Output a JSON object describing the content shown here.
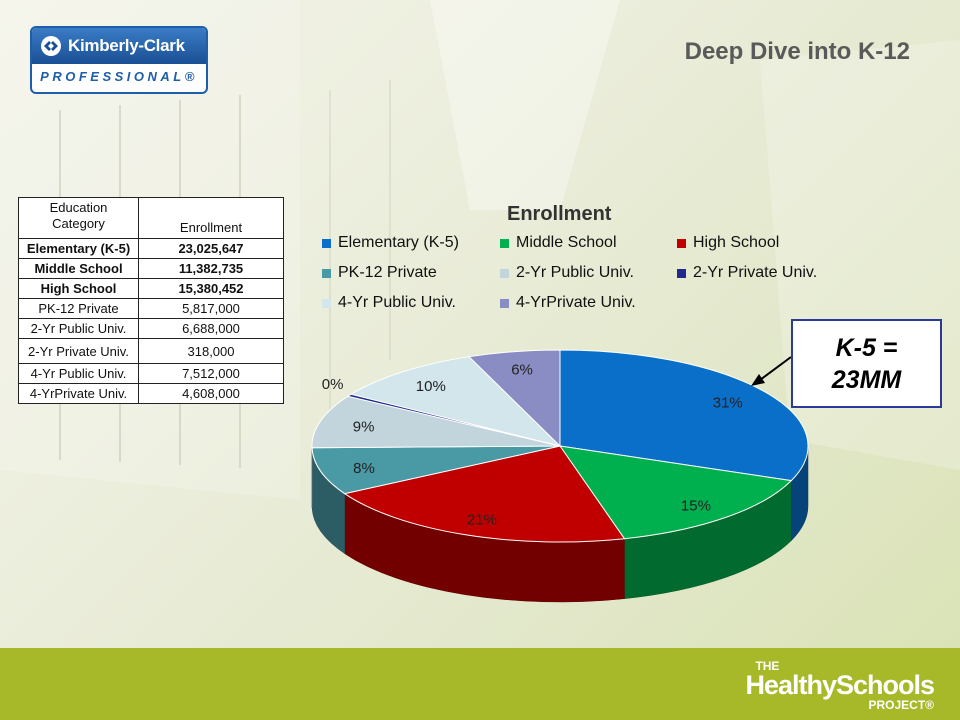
{
  "slide": {
    "title": "Deep Dive into K-12"
  },
  "logo": {
    "name": "Kimberly-Clark",
    "sub": "PROFESSIONAL®"
  },
  "table": {
    "headers": [
      "Education\nCategory",
      "Enrollment"
    ],
    "rows": [
      [
        "Elementary (K-5)",
        "23,025,647"
      ],
      [
        "Middle School",
        "11,382,735"
      ],
      [
        "High School",
        "15,380,452"
      ],
      [
        "PK-12 Private",
        "5,817,000"
      ],
      [
        "2-Yr Public Univ.",
        "6,688,000"
      ],
      [
        "2-Yr Private Univ.",
        "318,000"
      ],
      [
        "4-Yr Public Univ.",
        "7,512,000"
      ],
      [
        "4-YrPrivate Univ.",
        "4,608,000"
      ]
    ]
  },
  "chart_data": {
    "type": "pie",
    "title": "Enrollment",
    "legend_position": "top",
    "categories": [
      "Elementary (K-5)",
      "Middle School",
      "High School",
      "PK-12 Private",
      "2-Yr Public Univ.",
      "2-Yr Private Univ.",
      "4-Yr Public Univ.",
      "4-YrPrivate Univ."
    ],
    "values": [
      31,
      15,
      21,
      8,
      9,
      0.4,
      10,
      6
    ],
    "labels": [
      "31%",
      "15%",
      "21%",
      "8%",
      "9%",
      "0%",
      "10%",
      "6%"
    ],
    "colors": [
      "#0a6fc9",
      "#00b04f",
      "#c00000",
      "#4a9aa6",
      "#c2d4dc",
      "#1f2a8c",
      "#d2e6ec",
      "#8a8cc4"
    ],
    "style": "3d"
  },
  "callout": {
    "line1": "K-5 =",
    "line2": "23MM"
  },
  "footer": {
    "the": "THE",
    "main": "HealthySchools",
    "project": "PROJECT®"
  }
}
